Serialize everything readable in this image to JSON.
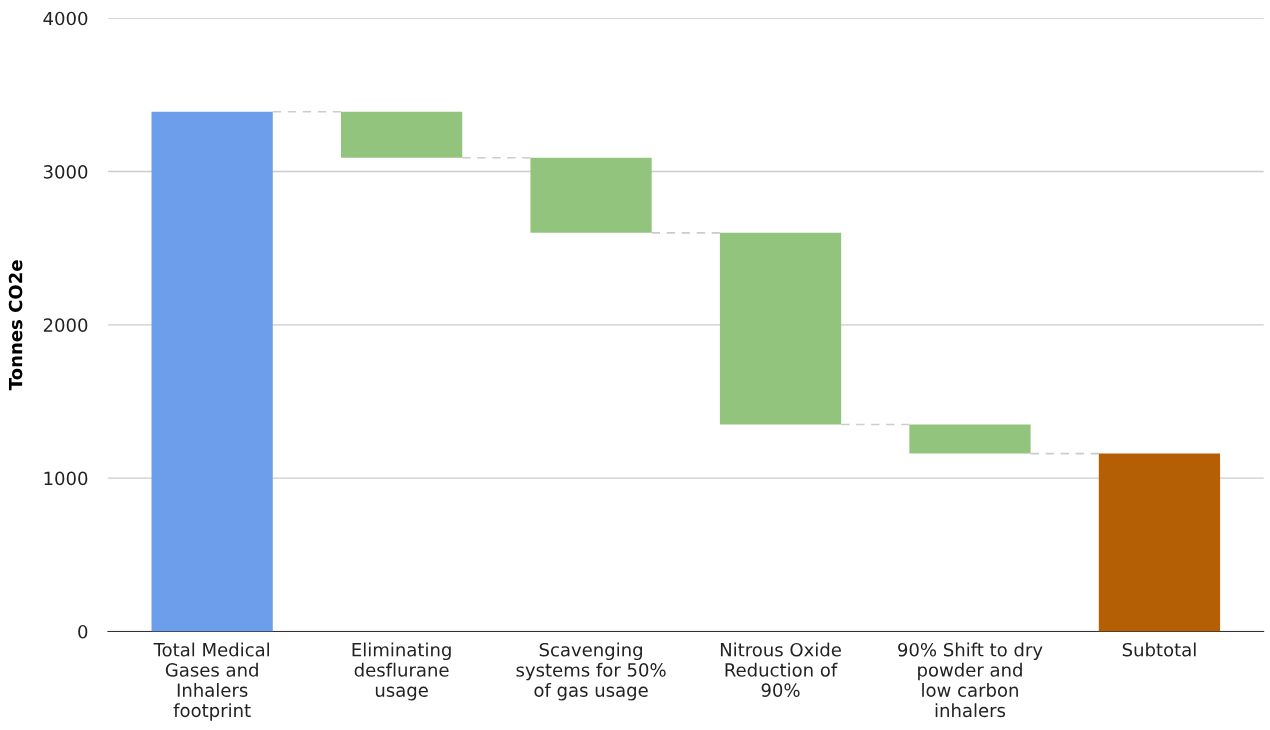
{
  "chart_data": {
    "type": "bar",
    "ylabel": "Tonnes CO2e",
    "categories": [
      "Total Medical\nGases and\nInhalers\nfootprint",
      "Eliminating\ndesflurane\nusage",
      "Scavenging\nsystems for 50%\nof gas usage",
      "Nitrous Oxide\nReduction of\n90%",
      "90% Shift to dry\npowder and\nlow carbon\ninhalers",
      "Subtotal"
    ],
    "values": [
      3390,
      300,
      490,
      1250,
      190,
      1160
    ],
    "base": [
      0,
      3090,
      2600,
      1350,
      1160,
      0
    ],
    "colors": [
      "#6d9eeb",
      "#93c47d",
      "#93c47d",
      "#93c47d",
      "#93c47d",
      "#b45f06"
    ],
    "ylim": [
      0,
      4000
    ],
    "yticks": [
      0,
      1000,
      2000,
      3000,
      4000
    ],
    "grid": "y",
    "legend": false
  }
}
